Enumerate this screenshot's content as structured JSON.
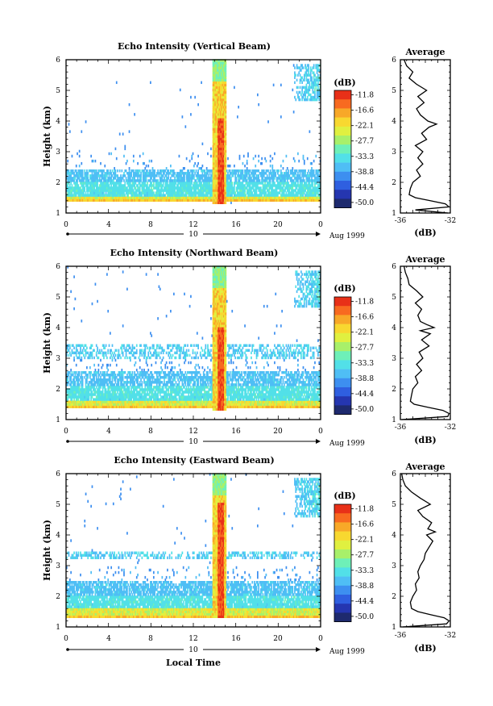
{
  "colorbar": {
    "unit": "(dB)",
    "levels": [
      "-11.8",
      "-16.6",
      "-22.1",
      "-27.7",
      "-33.3",
      "-38.8",
      "-44.4",
      "-50.0"
    ],
    "colors": [
      "#1e2a6e",
      "#2536b0",
      "#2f5fe0",
      "#3d8ff0",
      "#4fbef5",
      "#52e0e8",
      "#6ef0b8",
      "#a8f06a",
      "#e0f040",
      "#f8d830",
      "#f8a828",
      "#f86a20",
      "#e83018"
    ]
  },
  "footer": {
    "date_label": "Aug 1999",
    "day_label": "10",
    "xlabel": "Local Time"
  },
  "chart_data": [
    {
      "type": "heatmap",
      "title": "Echo Intensity (Vertical Beam)",
      "ylabel": "Height (km)",
      "xlim": [
        0,
        24
      ],
      "ylim": [
        1,
        6
      ],
      "xticks": [
        "0",
        "4",
        "8",
        "12",
        "16",
        "20",
        "0"
      ],
      "yticks": [
        "1",
        "2",
        "3",
        "4",
        "5",
        "6"
      ],
      "z_range_db": [
        -50.0,
        -11.8
      ],
      "features": {
        "surface_layer_km": [
          1.35,
          1.55
        ],
        "low_echo_band_km": [
          1.55,
          2.45
        ],
        "rain_column_hours": [
          13.8,
          15.1
        ],
        "rain_core_top_km": 4.1,
        "cloud_top_right_km": [
          4.7,
          5.9
        ]
      },
      "average": {
        "title": "Average",
        "xlabel": "(dB)",
        "xlim": [
          -36,
          -32
        ],
        "xticks": [
          "-36",
          "-32"
        ],
        "height_km": [
          1.0,
          1.1,
          1.2,
          1.3,
          1.4,
          1.5,
          1.6,
          1.8,
          2.0,
          2.2,
          2.4,
          2.6,
          2.8,
          3.0,
          3.2,
          3.4,
          3.6,
          3.8,
          3.9,
          4.0,
          4.2,
          4.4,
          4.6,
          4.8,
          5.0,
          5.2,
          5.4,
          5.6,
          5.8,
          6.0
        ],
        "db": [
          -32.2,
          -34.8,
          -32.1,
          -32.4,
          -33.6,
          -34.8,
          -35.3,
          -35.2,
          -35.0,
          -34.4,
          -34.7,
          -34.2,
          -34.6,
          -34.2,
          -34.8,
          -33.9,
          -34.3,
          -33.7,
          -33.1,
          -33.8,
          -34.4,
          -34.7,
          -34.1,
          -34.6,
          -33.9,
          -34.7,
          -35.3,
          -35.0,
          -35.5,
          -35.7
        ]
      }
    },
    {
      "type": "heatmap",
      "title": "Echo Intensity (Northward Beam)",
      "ylabel": "Height (km)",
      "xlim": [
        0,
        24
      ],
      "ylim": [
        1,
        6
      ],
      "xticks": [
        "0",
        "4",
        "8",
        "12",
        "16",
        "20",
        "0"
      ],
      "yticks": [
        "1",
        "2",
        "3",
        "4",
        "5",
        "6"
      ],
      "z_range_db": [
        -50.0,
        -11.8
      ],
      "features": {
        "surface_layer_km": [
          1.35,
          1.6
        ],
        "low_echo_band_km": [
          1.6,
          2.55
        ],
        "mid_layer_km": [
          3.0,
          3.45
        ],
        "rain_column_hours": [
          13.8,
          15.1
        ],
        "rain_core_top_km": 4.0,
        "cloud_top_right_km": [
          4.7,
          5.9
        ]
      },
      "average": {
        "title": "Average",
        "xlabel": "(dB)",
        "xlim": [
          -36,
          -32
        ],
        "xticks": [
          "-36",
          "-32"
        ],
        "height_km": [
          1.0,
          1.1,
          1.2,
          1.3,
          1.4,
          1.5,
          1.6,
          1.8,
          2.0,
          2.2,
          2.4,
          2.6,
          2.8,
          3.0,
          3.2,
          3.4,
          3.6,
          3.8,
          3.9,
          4.0,
          4.1,
          4.2,
          4.4,
          4.6,
          4.8,
          5.0,
          5.2,
          5.4,
          5.6,
          5.8,
          6.0
        ],
        "db": [
          -35.9,
          -32.2,
          -32.1,
          -32.6,
          -33.8,
          -34.9,
          -35.2,
          -35.1,
          -35.0,
          -34.6,
          -34.8,
          -34.3,
          -34.7,
          -34.2,
          -34.5,
          -33.7,
          -34.3,
          -33.6,
          -34.4,
          -33.3,
          -33.9,
          -34.4,
          -34.6,
          -34.3,
          -34.8,
          -34.2,
          -34.7,
          -35.3,
          -35.4,
          -35.6,
          -35.7
        ]
      }
    },
    {
      "type": "heatmap",
      "title": "Echo Intensity (Eastward Beam)",
      "ylabel": "Height (km)",
      "xlim": [
        0,
        24
      ],
      "ylim": [
        1,
        6
      ],
      "xticks": [
        "0",
        "4",
        "8",
        "12",
        "16",
        "20",
        "0"
      ],
      "yticks": [
        "1",
        "2",
        "3",
        "4",
        "5",
        "6"
      ],
      "z_range_db": [
        -50.0,
        -11.8
      ],
      "features": {
        "surface_layer_km": [
          1.3,
          1.6
        ],
        "low_echo_band_km": [
          1.6,
          2.5
        ],
        "mid_layer_km": [
          3.2,
          3.5
        ],
        "rain_column_hours": [
          13.8,
          15.1
        ],
        "rain_core_top_km": 5.1,
        "cloud_top_right_km": [
          4.6,
          5.9
        ]
      },
      "average": {
        "title": "Average",
        "xlabel": "(dB)",
        "xlim": [
          -36,
          -32
        ],
        "xticks": [
          "-36",
          "-32"
        ],
        "height_km": [
          1.0,
          1.1,
          1.2,
          1.3,
          1.4,
          1.5,
          1.6,
          1.8,
          2.0,
          2.2,
          2.4,
          2.6,
          2.8,
          3.0,
          3.2,
          3.4,
          3.6,
          3.8,
          4.0,
          4.1,
          4.2,
          4.4,
          4.6,
          4.8,
          5.0,
          5.2,
          5.4,
          5.6,
          5.8,
          6.0
        ],
        "db": [
          -35.8,
          -32.3,
          -32.1,
          -32.5,
          -33.6,
          -34.6,
          -35.1,
          -35.2,
          -35.0,
          -34.7,
          -34.8,
          -34.5,
          -34.6,
          -34.4,
          -34.1,
          -34.0,
          -33.7,
          -33.4,
          -33.9,
          -33.2,
          -33.8,
          -33.5,
          -34.2,
          -34.6,
          -33.6,
          -34.4,
          -35.1,
          -35.6,
          -35.8,
          -35.9
        ]
      }
    }
  ]
}
